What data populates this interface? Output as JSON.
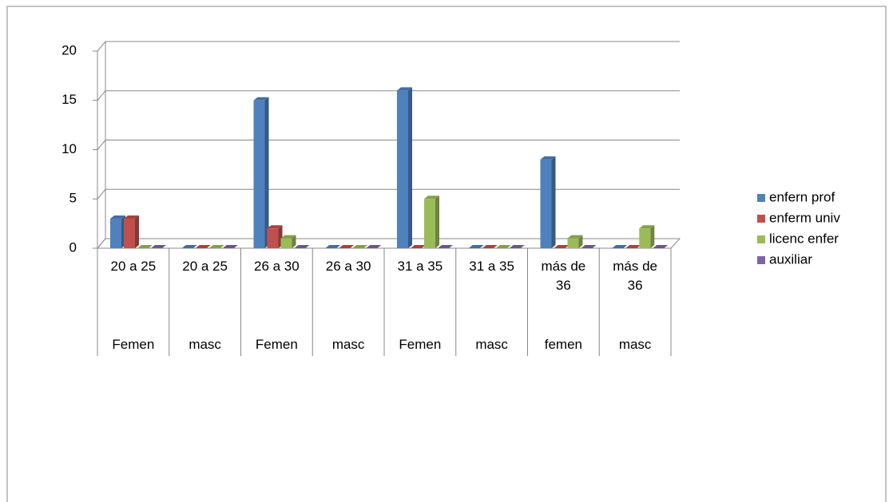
{
  "chart_data": {
    "type": "bar3d",
    "categories": [
      "20 a 25",
      "20 a 25",
      "26 a 30",
      "26 a 30",
      "31 a 35",
      "31 a 35",
      "más de 36",
      "más de 36"
    ],
    "groups": [
      "Femen",
      "masc",
      "Femen",
      "masc",
      "Femen",
      "masc",
      "femen",
      "masc"
    ],
    "series": [
      {
        "name": "enfern prof",
        "color": "#4f81bd",
        "values": [
          3,
          0,
          15,
          0,
          16,
          0,
          9,
          0
        ]
      },
      {
        "name": "enferm univ",
        "color": "#c0504d",
        "values": [
          3,
          0,
          2,
          0,
          0,
          0,
          0,
          0
        ]
      },
      {
        "name": "licenc enfer",
        "color": "#9bbb59",
        "values": [
          0,
          0,
          1,
          0,
          5,
          0,
          1,
          2
        ]
      },
      {
        "name": "auxiliar",
        "color": "#8064a2",
        "values": [
          0,
          0,
          0,
          0,
          0,
          0,
          0,
          0
        ]
      }
    ],
    "ylim": [
      0,
      20
    ],
    "yticks": [
      0,
      5,
      10,
      15,
      20
    ],
    "grid": true,
    "legend": "right"
  }
}
